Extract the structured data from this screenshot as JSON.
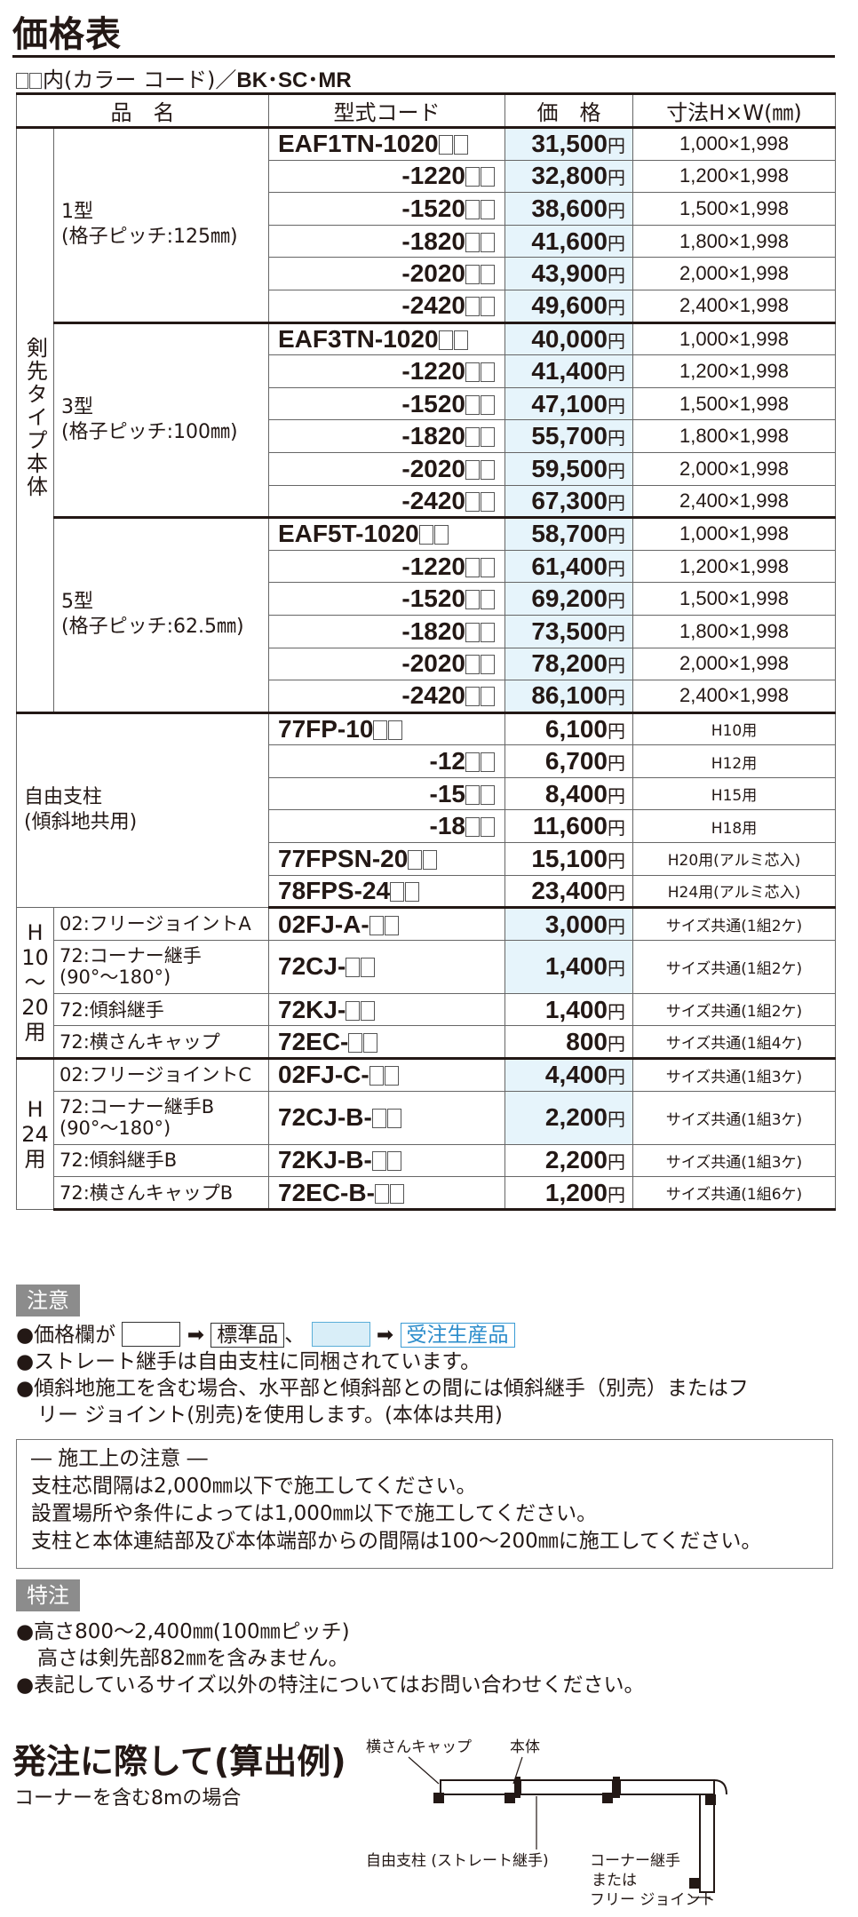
{
  "title": "価格表",
  "color_note": {
    "prefix": "内(カラー コード)／",
    "codes": "BK･SC･MR"
  },
  "table": {
    "headers": [
      "品　名",
      "型式コード",
      "価　格",
      "寸法H×W(㎜)"
    ],
    "body_group_label": "剣先タイプ本体",
    "groups": [
      {
        "type_label": "1型",
        "type_sub": "(格子ピッチ:125㎜)",
        "rows": [
          {
            "model": "EAF1TN-1020",
            "price": "31,500",
            "dim": "1,000×1,998",
            "made_to_order": true
          },
          {
            "model": "-1220",
            "price": "32,800",
            "dim": "1,200×1,998",
            "made_to_order": true
          },
          {
            "model": "-1520",
            "price": "38,600",
            "dim": "1,500×1,998",
            "made_to_order": true
          },
          {
            "model": "-1820",
            "price": "41,600",
            "dim": "1,800×1,998",
            "made_to_order": true
          },
          {
            "model": "-2020",
            "price": "43,900",
            "dim": "2,000×1,998",
            "made_to_order": true
          },
          {
            "model": "-2420",
            "price": "49,600",
            "dim": "2,400×1,998",
            "made_to_order": true
          }
        ]
      },
      {
        "type_label": "3型",
        "type_sub": "(格子ピッチ:100㎜)",
        "rows": [
          {
            "model": "EAF3TN-1020",
            "price": "40,000",
            "dim": "1,000×1,998",
            "made_to_order": true
          },
          {
            "model": "-1220",
            "price": "41,400",
            "dim": "1,200×1,998",
            "made_to_order": true
          },
          {
            "model": "-1520",
            "price": "47,100",
            "dim": "1,500×1,998",
            "made_to_order": true
          },
          {
            "model": "-1820",
            "price": "55,700",
            "dim": "1,800×1,998",
            "made_to_order": true
          },
          {
            "model": "-2020",
            "price": "59,500",
            "dim": "2,000×1,998",
            "made_to_order": true
          },
          {
            "model": "-2420",
            "price": "67,300",
            "dim": "2,400×1,998",
            "made_to_order": true
          }
        ]
      },
      {
        "type_label": "5型",
        "type_sub": "(格子ピッチ:62.5㎜)",
        "rows": [
          {
            "model": "EAF5T-1020",
            "price": "58,700",
            "dim": "1,000×1,998",
            "made_to_order": true
          },
          {
            "model": "-1220",
            "price": "61,400",
            "dim": "1,200×1,998",
            "made_to_order": true
          },
          {
            "model": "-1520",
            "price": "69,200",
            "dim": "1,500×1,998",
            "made_to_order": true
          },
          {
            "model": "-1820",
            "price": "73,500",
            "dim": "1,800×1,998",
            "made_to_order": true
          },
          {
            "model": "-2020",
            "price": "78,200",
            "dim": "2,000×1,998",
            "made_to_order": true
          },
          {
            "model": "-2420",
            "price": "86,100",
            "dim": "2,400×1,998",
            "made_to_order": true
          }
        ]
      }
    ],
    "posts": {
      "label": "自由支柱",
      "sub": "(傾斜地共用)",
      "rows": [
        {
          "model": "77FP-10",
          "price": "6,100",
          "dim": "H10用"
        },
        {
          "model": "-12",
          "price": "6,700",
          "dim": "H12用"
        },
        {
          "model": "-15",
          "price": "8,400",
          "dim": "H15用"
        },
        {
          "model": "-18",
          "price": "11,600",
          "dim": "H18用"
        },
        {
          "model": "77FPSN-20",
          "price": "15,100",
          "dim": "H20用(アルミ芯入)"
        },
        {
          "model": "78FPS-24",
          "price": "23,400",
          "dim": "H24用(アルミ芯入)"
        }
      ]
    },
    "parts_h10": {
      "label": [
        "H",
        "10",
        "〜",
        "20",
        "用"
      ],
      "rows": [
        {
          "name": "02:フリージョイントA",
          "model": "02FJ-A-",
          "price": "3,000",
          "dim": "サイズ共通(1組2ケ)",
          "made_to_order": true
        },
        {
          "name": "72:コーナー継手\n(90°〜180°)",
          "model": "72CJ-",
          "price": "1,400",
          "dim": "サイズ共通(1組2ケ)",
          "made_to_order": true
        },
        {
          "name": "72:傾斜継手",
          "model": "72KJ-",
          "price": "1,400",
          "dim": "サイズ共通(1組2ケ)",
          "made_to_order": false
        },
        {
          "name": "72:横さんキャップ",
          "model": "72EC-",
          "price": "800",
          "dim": "サイズ共通(1組4ケ)",
          "made_to_order": false
        }
      ]
    },
    "parts_h24": {
      "label": [
        "H",
        "24",
        "用"
      ],
      "rows": [
        {
          "name": "02:フリージョイントC",
          "model": "02FJ-C-",
          "price": "4,400",
          "dim": "サイズ共通(1組3ケ)",
          "made_to_order": true
        },
        {
          "name": "72:コーナー継手B\n(90°〜180°)",
          "model": "72CJ-B-",
          "price": "2,200",
          "dim": "サイズ共通(1組3ケ)",
          "made_to_order": true
        },
        {
          "name": "72:傾斜継手B",
          "model": "72KJ-B-",
          "price": "2,200",
          "dim": "サイズ共通(1組3ケ)",
          "made_to_order": false
        },
        {
          "name": "72:横さんキャップB",
          "model": "72EC-B-",
          "price": "1,200",
          "dim": "サイズ共通(1組6ケ)",
          "made_to_order": false
        }
      ]
    },
    "yen": "円"
  },
  "notes_label": "注意",
  "notes": {
    "legend_prefix": "●価格欄が",
    "legend_arrow": "➡",
    "legend_std": "標準品",
    "legend_sep": "、",
    "legend_order": "受注生産品",
    "n2": "●ストレート継手は自由支柱に同梱されています。",
    "n3a": "●傾斜地施工を含む場合、水平部と傾斜部との間には傾斜継手（別売）またはフ",
    "n3b": "リー ジョイント(別売)を使用します。(本体は共用)"
  },
  "caution": {
    "head": "― 施工上の注意 ―",
    "l1": "支柱芯間隔は2,000㎜以下で施工してください。",
    "l2": "設置場所や条件によっては1,000㎜以下で施工してください。",
    "l3": "支柱と本体連結部及び本体端部からの間隔は100〜200㎜に施工してください。"
  },
  "special_label": "特注",
  "special": {
    "s1": "●高さ800〜2,400㎜(100㎜ピッチ)",
    "s1b": "高さは剣先部82㎜を含みません。",
    "s2": "●表記しているサイズ以外の特注についてはお問い合わせください。"
  },
  "calc": {
    "title": "発注に際して(算出例)",
    "sub": "コーナーを含む8mの場合",
    "diagram_labels": {
      "cap": "横さんキャップ",
      "body": "本体",
      "post": "自由支柱 (ストレート継手)",
      "corner": "コーナー継手",
      "or": "または",
      "joint": "フリー ジョイント"
    }
  }
}
